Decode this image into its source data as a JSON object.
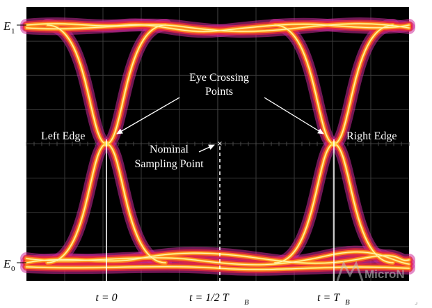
{
  "levels": {
    "high": "E",
    "high_sub": "1",
    "low": "E",
    "low_sub": "0"
  },
  "annotations": {
    "crossing_line1": "Eye Crossing",
    "crossing_line2": "Points",
    "left_edge": "Left Edge",
    "right_edge": "Right Edge",
    "sampling_line1": "Nominal",
    "sampling_line2": "Sampling Point"
  },
  "time_axis": {
    "t0": "t = 0",
    "thalf_prefix": "t = 1/2 T",
    "thalf_sub": "B",
    "tb_prefix": "t = T",
    "tb_sub": "B"
  },
  "watermark": {
    "text": "MicroN"
  },
  "colors": {
    "screen": "#000000",
    "grid": "#3a3a3a",
    "trace_outer": "#cc2b9a",
    "trace_mid": "#e8283a",
    "trace_core": "#ff8a1c",
    "trace_hot": "#ffd84a",
    "trace_white": "#fff6c8",
    "annotation": "#ffffff"
  }
}
